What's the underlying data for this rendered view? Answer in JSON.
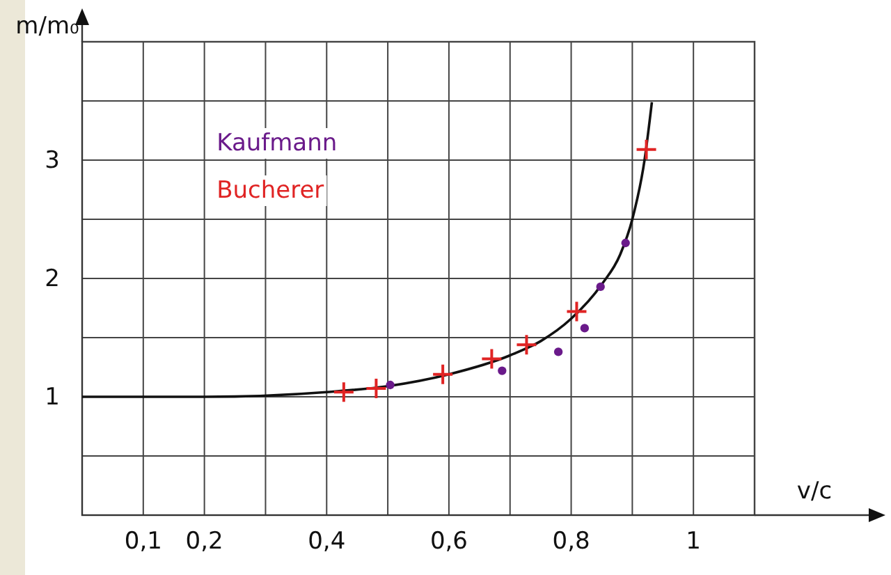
{
  "chart_data": {
    "type": "scatter",
    "xlabel": "v/c",
    "ylabel": "m/m₀",
    "xlim": [
      0,
      1.1
    ],
    "ylim": [
      0,
      4
    ],
    "xticks": [
      {
        "value": 0.1,
        "label": "0,1"
      },
      {
        "value": 0.2,
        "label": "0,2"
      },
      {
        "value": 0.3,
        "label": null
      },
      {
        "value": 0.4,
        "label": "0,4"
      },
      {
        "value": 0.5,
        "label": null
      },
      {
        "value": 0.6,
        "label": "0,6"
      },
      {
        "value": 0.7,
        "label": null
      },
      {
        "value": 0.8,
        "label": "0,8"
      },
      {
        "value": 0.9,
        "label": null
      },
      {
        "value": 1,
        "label": "1"
      },
      {
        "value": 1.1,
        "label": null
      }
    ],
    "yticks": [
      {
        "value": 0.5,
        "label": null
      },
      1,
      {
        "value": 1.5,
        "label": null
      },
      2,
      {
        "value": 2.5,
        "label": null
      },
      3,
      {
        "value": 3.5,
        "label": null
      },
      {
        "value": 4,
        "label": null
      }
    ],
    "grid": true,
    "legend": "top left",
    "series": [
      {
        "type": "line",
        "color": "#111111",
        "marker": "none",
        "line_style": "solid",
        "x": [
          0,
          0.2,
          0.4,
          0.5,
          0.6,
          0.7,
          0.75,
          0.8,
          0.85,
          0.88,
          0.9,
          0.92,
          0.932
        ],
        "values": [
          1,
          1,
          1.04,
          1.09,
          1.19,
          1.35,
          1.47,
          1.66,
          1.95,
          2.2,
          2.5,
          3.0,
          3.49
        ]
      },
      {
        "name": "Kaufmann",
        "type": "scatter",
        "color": "#6a1a8a",
        "marker": "circle",
        "x": [
          0.504,
          0.687,
          0.779,
          0.822,
          0.848,
          0.889
        ],
        "values": [
          1.1,
          1.22,
          1.38,
          1.58,
          1.93,
          2.3
        ]
      },
      {
        "name": "Bucherer",
        "type": "scatter",
        "color": "#e02424",
        "marker": "cross",
        "x": [
          0.428,
          0.481,
          0.59,
          0.67,
          0.727,
          0.809,
          0.923
        ],
        "values": [
          1.04,
          1.07,
          1.19,
          1.32,
          1.44,
          1.72,
          3.09
        ]
      }
    ]
  }
}
